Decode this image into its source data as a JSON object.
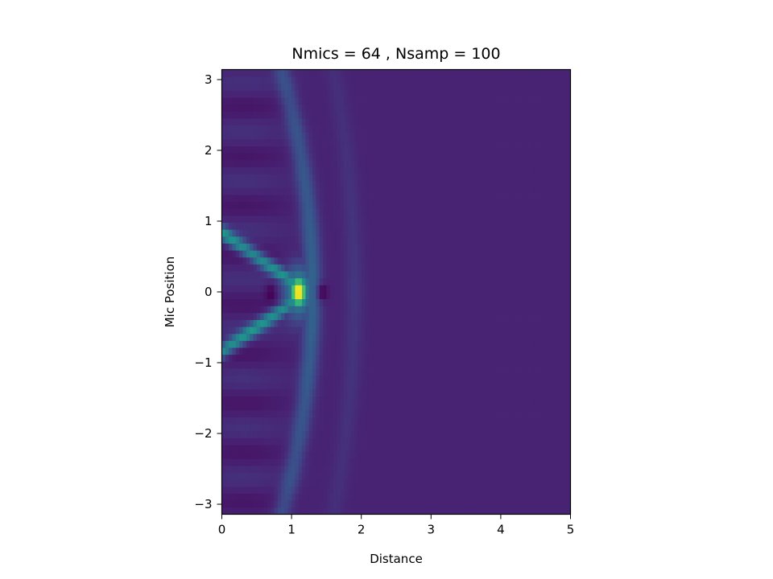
{
  "chart_data": {
    "type": "heatmap",
    "title": "Nmics = 64 , Nsamp = 100",
    "xlabel": "Distance",
    "ylabel": "Mic Position",
    "xlim": [
      0,
      5
    ],
    "ylim": [
      -3.1416,
      3.1416
    ],
    "xticks": [
      0,
      1,
      2,
      3,
      4,
      5
    ],
    "xtick_labels": [
      "0",
      "1",
      "2",
      "3",
      "4",
      "5"
    ],
    "yticks": [
      -3,
      -2,
      -1,
      0,
      1,
      2,
      3
    ],
    "ytick_labels": [
      "−3",
      "−2",
      "−1",
      "0",
      "1",
      "2",
      "3"
    ],
    "colormap": "viridis",
    "grid": false,
    "legend": "none",
    "source": {
      "x": 1.1,
      "y": 0.0,
      "peak_value": 1.0
    },
    "background_value": 0.1,
    "features": [
      {
        "kind": "wavefront-band",
        "x_at_center": 1.3,
        "curvature": 0.045,
        "level": 0.33
      },
      {
        "kind": "wavefront-band",
        "x_at_center": 1.9,
        "curvature": 0.03,
        "level": 0.16
      },
      {
        "kind": "x-shaped-arms",
        "from_x": 0.0,
        "to_x": 1.05,
        "y_at_edge": 0.72,
        "level": 0.5
      },
      {
        "kind": "null",
        "x": 0.7,
        "y": 0.0,
        "level": 0.0
      },
      {
        "kind": "null",
        "x": 1.45,
        "y": 0.0,
        "level": 0.0
      }
    ],
    "colors": {
      "low": "#440154",
      "background": "#472d7b",
      "mid": "#21918c",
      "high": "#fde725"
    }
  }
}
